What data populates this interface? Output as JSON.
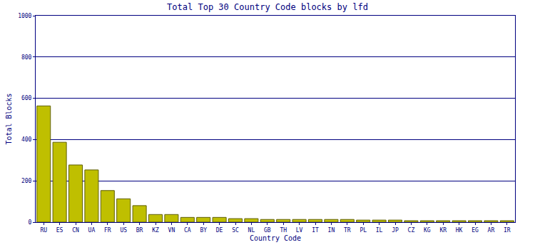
{
  "chart_data": {
    "type": "bar",
    "title": "Total Top 30 Country Code blocks by lfd",
    "x_label": "Country Code",
    "y_label": "Total Blocks",
    "categories": [
      "RU",
      "ES",
      "CN",
      "UA",
      "FR",
      "US",
      "BR",
      "KZ",
      "VN",
      "CA",
      "BY",
      "DE",
      "SC",
      "NL",
      "GB",
      "TH",
      "LV",
      "IT",
      "IN",
      "TR",
      "PL",
      "IL",
      "JP",
      "CZ",
      "KG",
      "KR",
      "HK",
      "EG",
      "AR",
      "IR"
    ],
    "values": [
      563,
      387,
      277,
      253,
      153,
      113,
      80,
      37,
      37,
      23,
      23,
      23,
      17,
      17,
      13,
      13,
      13,
      13,
      13,
      13,
      10,
      10,
      10,
      7,
      7,
      7,
      7,
      7,
      7,
      7
    ],
    "color": "#bfbf00",
    "ylim": [
      0,
      1000
    ],
    "yticks": [
      0,
      200,
      400,
      600,
      800,
      1000
    ],
    "grid": true
  }
}
